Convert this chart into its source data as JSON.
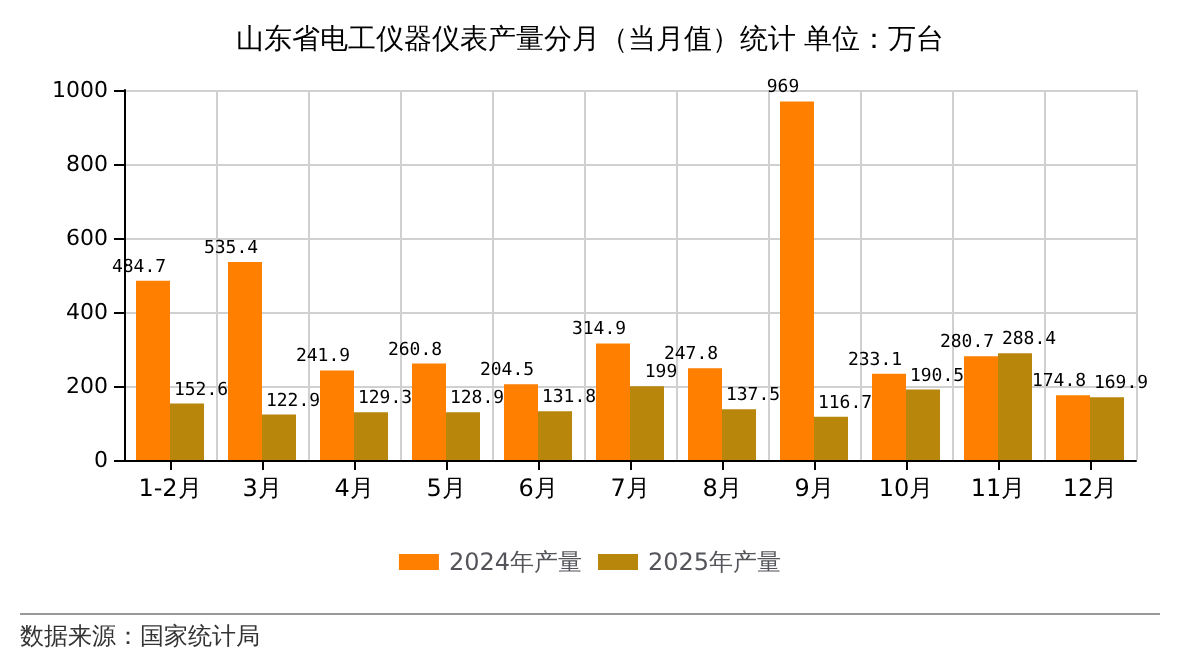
{
  "chart_data": {
    "type": "bar",
    "title": "山东省电工仪器仪表产量分月（当月值）统计 单位：万台",
    "categories": [
      "1-2月",
      "3月",
      "4月",
      "5月",
      "6月",
      "7月",
      "8月",
      "9月",
      "10月",
      "11月",
      "12月"
    ],
    "series": [
      {
        "name": "2024年产量",
        "color": "#ff8000",
        "values": [
          484.7,
          535.4,
          241.9,
          260.8,
          204.5,
          314.9,
          247.8,
          969,
          233.1,
          280.7,
          174.8
        ]
      },
      {
        "name": "2025年产量",
        "color": "#b8860b",
        "values": [
          152.6,
          122.9,
          129.3,
          128.9,
          131.8,
          199,
          137.5,
          116.7,
          190.5,
          288.4,
          169.9
        ]
      }
    ],
    "ylim": [
      0,
      1000
    ],
    "yticks": [
      0,
      200,
      400,
      600,
      800,
      1000
    ],
    "grid": true,
    "legend": "bottom",
    "data_labels": true,
    "annotations": [
      "数据来源：国家统计局"
    ]
  }
}
